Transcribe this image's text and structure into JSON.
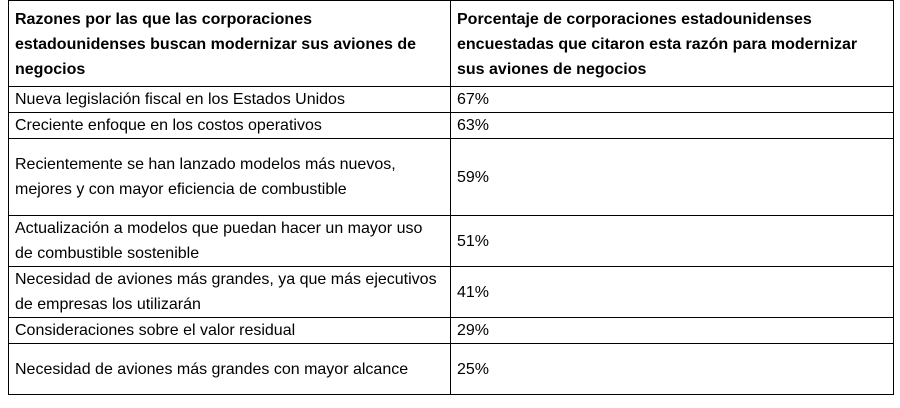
{
  "table": {
    "header": [
      "Razones por las que las corporaciones estadounidenses buscan modernizar sus aviones de negocios",
      "Porcentaje de corporaciones estadounidenses encuestadas que citaron esta razón para modernizar sus aviones de negocios"
    ],
    "rows": [
      [
        "Nueva legislación fiscal en los Estados Unidos",
        "67%"
      ],
      [
        "Creciente enfoque en los costos operativos",
        "63%"
      ],
      [
        "Recientemente se han lanzado modelos más nuevos, mejores y con mayor eficiencia de combustible",
        "59%"
      ],
      [
        "Actualización a modelos que puedan hacer un mayor uso de combustible sostenible",
        "51%"
      ],
      [
        "Necesidad de aviones más grandes, ya que más ejecutivos de empresas los utilizarán",
        "41%"
      ],
      [
        "Consideraciones sobre el valor residual",
        "29%"
      ],
      [
        "Necesidad de aviones más grandes con mayor alcance",
        "25%"
      ]
    ]
  }
}
